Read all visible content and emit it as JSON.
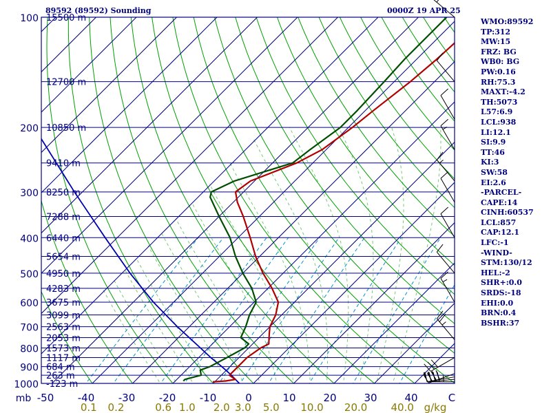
{
  "header": {
    "title_left": "89592 (89592) Sounding",
    "title_right": "0000Z 19 APR 25"
  },
  "indices": [
    "WMO:89592",
    "TP:312",
    "MW:15",
    "FRZ: BG",
    "WB0: BG",
    "PW:0.16",
    "RH:75.3",
    "MAXT:-4.2",
    "TH:5073",
    "L57:6.9",
    "LCL:938",
    "LI:12.1",
    "SI:9.9",
    "TT:46",
    "KI:3",
    "SW:58",
    "EI:2.6",
    "-PARCEL-",
    "CAPE:14",
    "CINH:60537",
    "LCL:857",
    "CAP:12.1",
    "LFC:-1",
    "-WIND-",
    "STM:130/12",
    "HEL:-2",
    "SHR+:0.0",
    "SRDS:-18",
    "EHI:0.0",
    "BRN:0.4",
    "BSHR:37"
  ],
  "chart_data": {
    "type": "skew-t",
    "pressure_axis": {
      "label": "mb",
      "ticks": [
        100,
        200,
        300,
        400,
        500,
        600,
        700,
        800,
        900,
        1000
      ]
    },
    "temperature_axis": {
      "ticks": [
        "-50",
        "-40",
        "-30",
        "-20",
        "-10",
        "0",
        "10",
        "20",
        "30",
        "40",
        "C"
      ]
    },
    "mixing_ratio_axis": {
      "unit": "g/kg",
      "ticks": [
        "0.1",
        "0.2",
        "0.6",
        "1.0",
        "2.0",
        "3.0",
        "5.0",
        "10.0",
        "20.0",
        "40.0"
      ]
    },
    "height_labels": [
      {
        "p": 100,
        "label": "15500 m"
      },
      {
        "p": 150,
        "label": "12700 m"
      },
      {
        "p": 200,
        "label": "10850 m"
      },
      {
        "p": 250,
        "label": "9410 m"
      },
      {
        "p": 300,
        "label": "8250 m"
      },
      {
        "p": 350,
        "label": "7288 m"
      },
      {
        "p": 400,
        "label": "6440 m"
      },
      {
        "p": 450,
        "label": "5654 m"
      },
      {
        "p": 500,
        "label": "4950 m"
      },
      {
        "p": 550,
        "label": "4283 m"
      },
      {
        "p": 600,
        "label": "3675 m"
      },
      {
        "p": 650,
        "label": "3099 m"
      },
      {
        "p": 700,
        "label": "2563 m"
      },
      {
        "p": 750,
        "label": "2053 m"
      },
      {
        "p": 800,
        "label": "1573 m"
      },
      {
        "p": 850,
        "label": "1117 m"
      },
      {
        "p": 900,
        "label": "684 m"
      },
      {
        "p": 950,
        "label": "263 m"
      },
      {
        "p": 1000,
        "label": "-123 m"
      }
    ],
    "temperature_profile": [
      {
        "p": 990,
        "t": -10.5
      },
      {
        "p": 985,
        "t": -7.5
      },
      {
        "p": 975,
        "t": -5.5
      },
      {
        "p": 950,
        "t": -8
      },
      {
        "p": 900,
        "t": -8
      },
      {
        "p": 850,
        "t": -8
      },
      {
        "p": 800,
        "t": -7
      },
      {
        "p": 780,
        "t": -6
      },
      {
        "p": 760,
        "t": -7
      },
      {
        "p": 730,
        "t": -8.5
      },
      {
        "p": 700,
        "t": -10
      },
      {
        "p": 650,
        "t": -11.5
      },
      {
        "p": 600,
        "t": -14
      },
      {
        "p": 550,
        "t": -19
      },
      {
        "p": 500,
        "t": -25
      },
      {
        "p": 450,
        "t": -31
      },
      {
        "p": 400,
        "t": -37
      },
      {
        "p": 350,
        "t": -44
      },
      {
        "p": 320,
        "t": -49
      },
      {
        "p": 300,
        "t": -52
      },
      {
        "p": 280,
        "t": -51
      },
      {
        "p": 250,
        "t": -44
      },
      {
        "p": 230,
        "t": -41
      },
      {
        "p": 200,
        "t": -39
      },
      {
        "p": 180,
        "t": -38
      },
      {
        "p": 150,
        "t": -36
      },
      {
        "p": 130,
        "t": -35
      },
      {
        "p": 100,
        "t": -34
      }
    ],
    "dewpoint_profile": [
      {
        "p": 985,
        "t": -18
      },
      {
        "p": 975,
        "t": -18
      },
      {
        "p": 950,
        "t": -15
      },
      {
        "p": 920,
        "t": -16.5
      },
      {
        "p": 900,
        "t": -15
      },
      {
        "p": 850,
        "t": -13
      },
      {
        "p": 800,
        "t": -11
      },
      {
        "p": 780,
        "t": -11
      },
      {
        "p": 750,
        "t": -14.5
      },
      {
        "p": 700,
        "t": -16
      },
      {
        "p": 650,
        "t": -18
      },
      {
        "p": 600,
        "t": -19.5
      },
      {
        "p": 550,
        "t": -24
      },
      {
        "p": 500,
        "t": -30
      },
      {
        "p": 450,
        "t": -36
      },
      {
        "p": 400,
        "t": -42
      },
      {
        "p": 350,
        "t": -50
      },
      {
        "p": 310,
        "t": -57
      },
      {
        "p": 300,
        "t": -58
      },
      {
        "p": 280,
        "t": -55
      },
      {
        "p": 250,
        "t": -45
      },
      {
        "p": 230,
        "t": -44
      },
      {
        "p": 200,
        "t": -42
      },
      {
        "p": 180,
        "t": -42
      },
      {
        "p": 150,
        "t": -42.5
      },
      {
        "p": 130,
        "t": -43
      },
      {
        "p": 100,
        "t": -43
      }
    ],
    "parcel_profile": [
      {
        "p": 1000,
        "t": -3.5
      },
      {
        "p": 950,
        "t": -7.5
      },
      {
        "p": 900,
        "t": -12
      },
      {
        "p": 850,
        "t": -17
      },
      {
        "p": 800,
        "t": -22
      },
      {
        "p": 700,
        "t": -33
      },
      {
        "p": 600,
        "t": -45
      },
      {
        "p": 500,
        "t": -58
      },
      {
        "p": 400,
        "t": -73
      },
      {
        "p": 300,
        "t": -92
      },
      {
        "p": 200,
        "t": -118
      },
      {
        "p": 150,
        "t": -135
      },
      {
        "p": 100,
        "t": -160
      }
    ],
    "wind_barbs": [
      {
        "p": 990,
        "dir": 270,
        "spd": 45
      },
      {
        "p": 975,
        "dir": 265,
        "spd": 45
      },
      {
        "p": 960,
        "dir": 260,
        "spd": 40
      },
      {
        "p": 940,
        "dir": 250,
        "spd": 30
      },
      {
        "p": 850,
        "dir": 240,
        "spd": 30
      },
      {
        "p": 760,
        "dir": 320,
        "spd": 25
      },
      {
        "p": 600,
        "dir": 330,
        "spd": 15
      },
      {
        "p": 500,
        "dir": 320,
        "spd": 10
      },
      {
        "p": 400,
        "dir": 330,
        "spd": 10
      },
      {
        "p": 320,
        "dir": 330,
        "spd": 10
      },
      {
        "p": 280,
        "dir": 320,
        "spd": 15
      },
      {
        "p": 230,
        "dir": 330,
        "spd": 15
      },
      {
        "p": 190,
        "dir": 330,
        "spd": 10
      },
      {
        "p": 150,
        "dir": 320,
        "spd": 10
      },
      {
        "p": 100,
        "dir": 310,
        "spd": 15
      }
    ],
    "colors": {
      "isobar": "#000080",
      "isotherm": "#000080",
      "temperature": "#b00000",
      "dewpoint": "#004d00",
      "parcel": "#0000b0",
      "dry_adiabat": "#00a000",
      "moist_adiabat": "#00a000",
      "mixing_ratio": "#0090d0",
      "barb": "#000000",
      "axis_text": "#000080",
      "mixing_text": "#8a7a00"
    }
  }
}
